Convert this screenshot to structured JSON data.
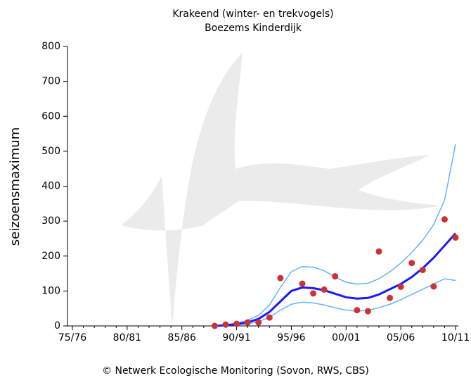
{
  "chart_data": {
    "type": "line",
    "title": "Krakeend (winter- en trekvogels)",
    "subtitle": "Boezems Kinderdijk",
    "y_label": "seizoensmaximum",
    "footer": "©  Netwerk Ecologische Monitoring (Sovon, RWS, CBS)",
    "categories": [
      "75/76",
      null,
      null,
      null,
      null,
      "80/81",
      null,
      null,
      null,
      null,
      "85/86",
      null,
      null,
      null,
      null,
      "90/91",
      null,
      null,
      null,
      null,
      "95/96",
      null,
      null,
      null,
      null,
      "00/01",
      null,
      null,
      null,
      null,
      "05/06",
      null,
      null,
      null,
      null,
      "10/11"
    ],
    "ylim": [
      0,
      800
    ],
    "yticks": [
      0,
      100,
      200,
      300,
      400,
      500,
      600,
      700,
      800
    ],
    "series": [
      {
        "type": "line",
        "color": "#66b3ff",
        "values": [
          null,
          null,
          null,
          null,
          null,
          null,
          null,
          null,
          null,
          null,
          null,
          null,
          null,
          0,
          3,
          8,
          16,
          30,
          60,
          110,
          155,
          170,
          168,
          158,
          140,
          125,
          120,
          122,
          135,
          155,
          180,
          210,
          245,
          290,
          360,
          520
        ]
      },
      {
        "type": "line",
        "color": "#66b3ff",
        "values": [
          null,
          null,
          null,
          null,
          null,
          null,
          null,
          null,
          null,
          null,
          null,
          null,
          null,
          0,
          1,
          3,
          6,
          12,
          25,
          45,
          62,
          68,
          66,
          60,
          52,
          45,
          42,
          45,
          52,
          62,
          75,
          90,
          105,
          120,
          135,
          130
        ]
      },
      {
        "type": "line",
        "color": "#1a1aff",
        "values": [
          null,
          null,
          null,
          null,
          null,
          null,
          null,
          null,
          null,
          null,
          null,
          null,
          null,
          0,
          2,
          5,
          10,
          20,
          40,
          70,
          100,
          110,
          108,
          102,
          92,
          82,
          78,
          80,
          90,
          105,
          120,
          140,
          165,
          195,
          230,
          265
        ]
      },
      {
        "type": "scatter",
        "color": "#cc3333",
        "values": [
          null,
          null,
          null,
          null,
          null,
          null,
          null,
          null,
          null,
          null,
          null,
          null,
          null,
          0,
          4,
          6,
          10,
          10,
          24,
          137,
          null,
          121,
          93,
          104,
          142,
          null,
          45,
          42,
          213,
          80,
          112,
          180,
          160,
          113,
          305,
          253
        ]
      }
    ]
  }
}
